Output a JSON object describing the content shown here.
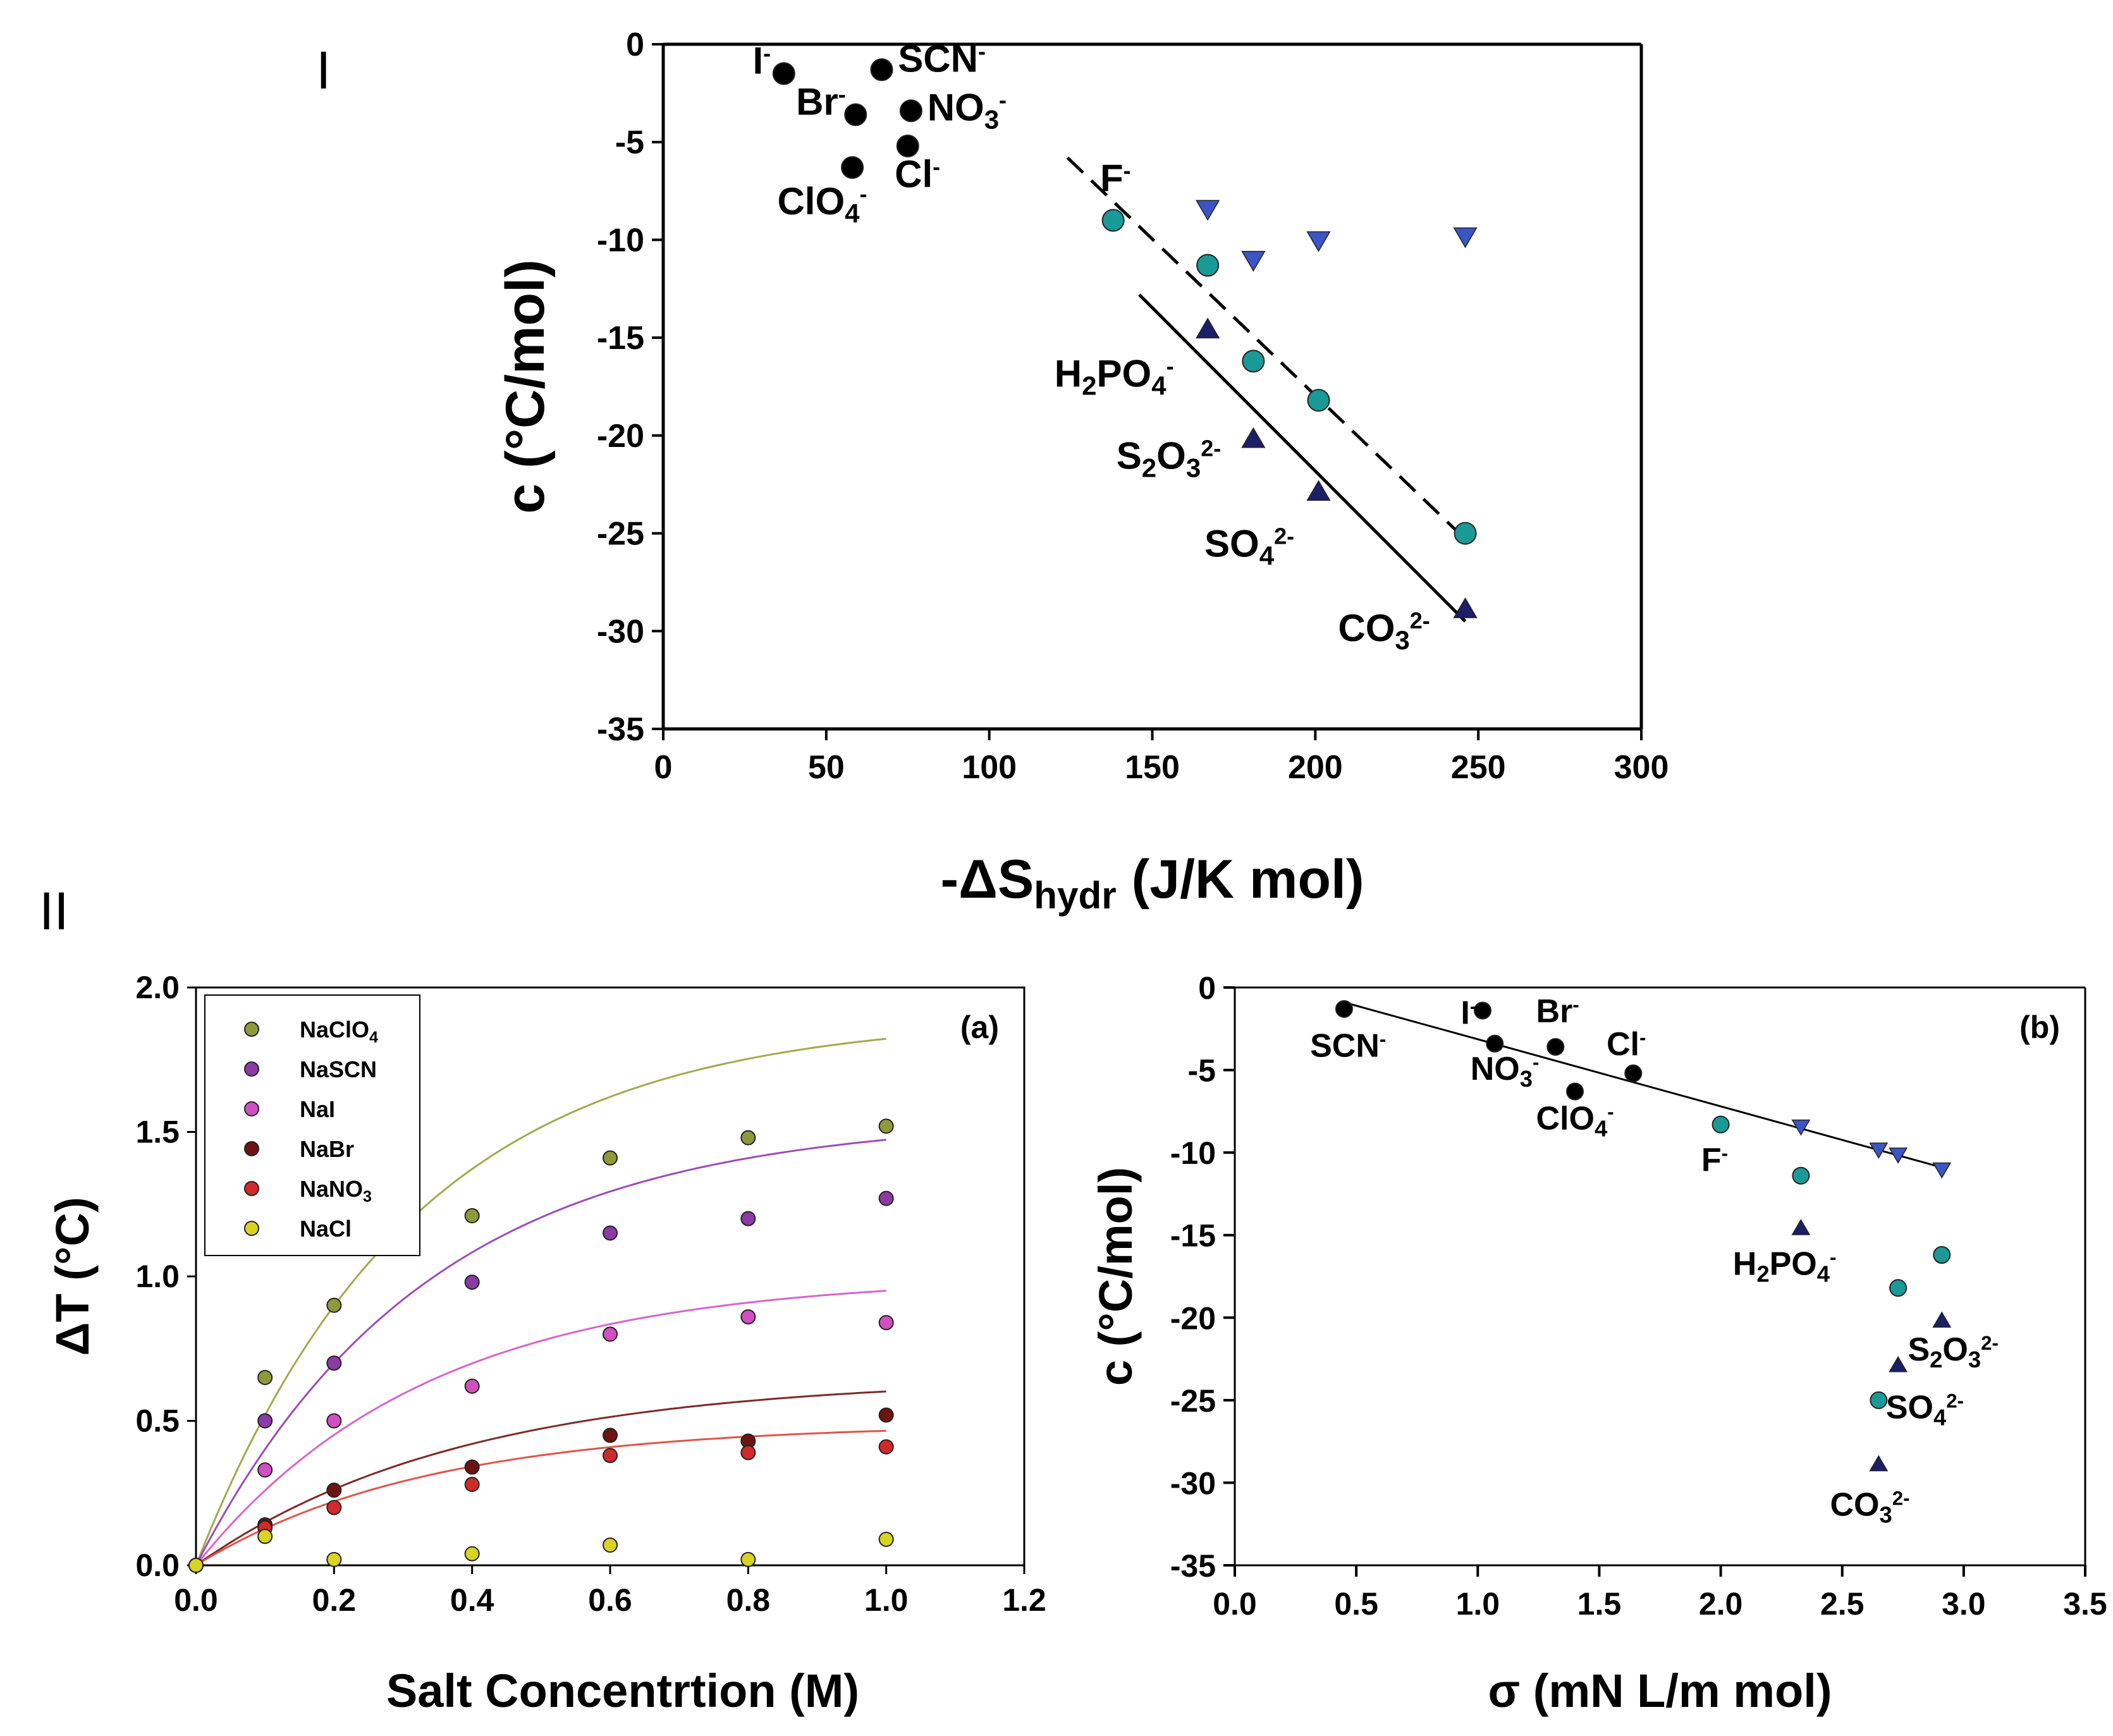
{
  "figure": {
    "panel_I": "I",
    "panel_II": "II",
    "label_a": "(a)",
    "label_b": "(b)"
  },
  "chart_data": [
    {
      "id": "top",
      "type": "scatter",
      "title": "",
      "xlabel": "-ΔS",
      "xlabel_sub": "hydr",
      "xlabel_tail": " (J/K mol)",
      "ylabel": "c (°C/mol)",
      "xlim": [
        0,
        300
      ],
      "ylim": [
        -35,
        0
      ],
      "xticks": [
        0,
        50,
        100,
        150,
        200,
        250,
        300
      ],
      "yticks": [
        0,
        -5,
        -10,
        -15,
        -20,
        -25,
        -30,
        -35
      ],
      "colors": {
        "black": "#000000",
        "teal": "#1a9a97",
        "blue": "#3a55c4",
        "navy": "#1c1e66"
      },
      "series": [
        {
          "name": "monovalent",
          "marker": "circle",
          "color": "black",
          "x": [
            37,
            67,
            59,
            76,
            75,
            58
          ],
          "y": [
            -1.5,
            -1.3,
            -3.6,
            -3.4,
            -5.2,
            -6.3
          ]
        },
        {
          "name": "teal",
          "marker": "circle",
          "color": "teal",
          "x": [
            138,
            167,
            181,
            201,
            246
          ],
          "y": [
            -9,
            -11.3,
            -16.2,
            -18.2,
            -25
          ]
        },
        {
          "name": "blue-down",
          "marker": "tri-down",
          "color": "blue",
          "x": [
            167,
            181,
            201,
            246
          ],
          "y": [
            -8.4,
            -11,
            -10,
            -9.8
          ]
        },
        {
          "name": "navy-up",
          "marker": "tri-up",
          "color": "navy",
          "x": [
            167,
            181,
            201,
            246
          ],
          "y": [
            -14.6,
            -20.2,
            -22.9,
            -28.9
          ]
        }
      ],
      "lines": [
        {
          "style": "dashed",
          "x": [
            124,
            246
          ],
          "y": [
            -5.8,
            -25.3
          ]
        },
        {
          "style": "solid",
          "x": [
            146,
            246
          ],
          "y": [
            -12.8,
            -29.5
          ]
        }
      ],
      "labels": [
        {
          "base": "I",
          "sup": "-",
          "x": 33,
          "y": -1.5,
          "anchor": "end"
        },
        {
          "base": "SCN",
          "sup": "-",
          "x": 72,
          "y": -1.4,
          "anchor": "start"
        },
        {
          "base": "Br",
          "sup": "-",
          "x": 56,
          "y": -3.6,
          "anchor": "end"
        },
        {
          "base": "NO",
          "sub": "3",
          "sup": "-",
          "x": 81,
          "y": -3.9,
          "anchor": "start"
        },
        {
          "base": "Cl",
          "sup": "-",
          "x": 71,
          "y": -7.3,
          "anchor": "start"
        },
        {
          "base": "ClO",
          "sub": "4",
          "sup": "-",
          "x": 35,
          "y": -8.7,
          "anchor": "start"
        },
        {
          "base": "F",
          "sup": "-",
          "x": 134,
          "y": -7.5,
          "anchor": "start"
        },
        {
          "base": "H",
          "sub": "2",
          "base2": "PO",
          "sub2": "4",
          "sup": "-",
          "x": 120,
          "y": -17.5,
          "anchor": "start"
        },
        {
          "base": "S",
          "sub": "2",
          "base2": "O",
          "sub2": "3",
          "sup": "2-",
          "x": 139,
          "y": -21.7,
          "anchor": "start"
        },
        {
          "base": "SO",
          "sub": "4",
          "sup": "2-",
          "x": 166,
          "y": -26.2,
          "anchor": "start"
        },
        {
          "base": "CO",
          "sub": "3",
          "sup": "2-",
          "x": 207,
          "y": -30.5,
          "anchor": "start"
        }
      ]
    },
    {
      "id": "a",
      "type": "line",
      "title": "(a)",
      "xlabel": "Salt Concentrtion (M)",
      "ylabel": "ΔT (°C)",
      "xlim": [
        0,
        1.2
      ],
      "ylim": [
        0,
        2.0
      ],
      "xticks": [
        0.0,
        0.2,
        0.4,
        0.6,
        0.8,
        1.0,
        1.2
      ],
      "yticks": [
        0.0,
        0.5,
        1.0,
        1.5,
        2.0
      ],
      "x": [
        0,
        0.1,
        0.2,
        0.4,
        0.6,
        0.8,
        1.0
      ],
      "series": [
        {
          "name": "NaClO",
          "sub": "4",
          "color": "#8e9a3a",
          "line": "#a3aa4e",
          "values": [
            0,
            0.65,
            0.9,
            1.21,
            1.41,
            1.48,
            1.52
          ],
          "fit": [
            1.9,
            3.2
          ]
        },
        {
          "name": "NaSCN",
          "sub": "",
          "color": "#8b3aa6",
          "line": "#9d4db8",
          "values": [
            0,
            0.5,
            0.7,
            0.98,
            1.15,
            1.2,
            1.27
          ],
          "fit": [
            1.55,
            3.0
          ]
        },
        {
          "name": "NaI",
          "sub": "",
          "color": "#d14fc0",
          "line": "#d865c9",
          "values": [
            0,
            0.33,
            0.5,
            0.62,
            0.8,
            0.86,
            0.84
          ],
          "fit": [
            1.0,
            3.0
          ]
        },
        {
          "name": "NaBr",
          "sub": "",
          "color": "#6e1212",
          "line": "#7d2a2a",
          "values": [
            0,
            0.14,
            0.26,
            0.34,
            0.45,
            0.43,
            0.52
          ],
          "fit": [
            0.65,
            2.6
          ]
        },
        {
          "name": "NaNO",
          "sub": "3",
          "color": "#d22a2a",
          "line": "#e0554a",
          "values": [
            0,
            0.13,
            0.2,
            0.28,
            0.38,
            0.39,
            0.41
          ],
          "fit": [
            0.49,
            3.0
          ]
        },
        {
          "name": "NaCl",
          "sub": "",
          "color": "#d9d322",
          "line": "#d9d322",
          "values": [
            0,
            0.1,
            0.02,
            0.04,
            0.07,
            0.02,
            0.09
          ],
          "fit": null
        }
      ]
    },
    {
      "id": "b",
      "type": "scatter",
      "title": "(b)",
      "xlabel": "σ (mN L/m mol)",
      "ylabel": "c (°C/mol)",
      "xlim": [
        0,
        3.5
      ],
      "ylim": [
        -35,
        0
      ],
      "xticks": [
        "0.0",
        "0.5",
        "1.0",
        "1.5",
        "2.0",
        "2.5",
        "3.0",
        "3.5"
      ],
      "yticks": [
        0,
        -5,
        -10,
        -15,
        -20,
        -25,
        -30,
        -35
      ],
      "colors": {
        "black": "#000000",
        "teal": "#1a9a97",
        "blue": "#3a55c4",
        "navy": "#1c1e66"
      },
      "series": [
        {
          "name": "monovalent",
          "marker": "circle",
          "color": "black",
          "x": [
            0.45,
            1.02,
            1.07,
            1.32,
            1.4,
            1.64
          ],
          "y": [
            -1.3,
            -1.4,
            -3.4,
            -3.6,
            -6.3,
            -5.2
          ]
        },
        {
          "name": "teal",
          "marker": "circle",
          "color": "teal",
          "x": [
            2.0,
            2.33,
            2.65,
            2.73,
            2.91
          ],
          "y": [
            -8.3,
            -11.4,
            -25.0,
            -18.2,
            -16.2
          ]
        },
        {
          "name": "blue-down",
          "marker": "tri-down",
          "color": "blue",
          "x": [
            2.33,
            2.65,
            2.73,
            2.91
          ],
          "y": [
            -8.4,
            -9.8,
            -10.1,
            -11.0
          ]
        },
        {
          "name": "navy-up",
          "marker": "tri-up",
          "color": "navy",
          "x": [
            2.33,
            2.65,
            2.73,
            2.91
          ],
          "y": [
            -14.6,
            -28.9,
            -22.9,
            -20.2
          ]
        }
      ],
      "lines": [
        {
          "style": "solid",
          "x": [
            0.45,
            2.91
          ],
          "y": [
            -0.9,
            -10.9
          ]
        }
      ],
      "labels": [
        {
          "base": "SCN",
          "sup": "-",
          "x": 0.31,
          "y": -4.2,
          "anchor": "start"
        },
        {
          "base": "I",
          "sup": "-",
          "x": 0.93,
          "y": -2.2,
          "anchor": "start"
        },
        {
          "base": "Br",
          "sup": "-",
          "x": 1.24,
          "y": -2.1,
          "anchor": "start"
        },
        {
          "base": "NO",
          "sub": "3",
          "sup": "-",
          "x": 0.97,
          "y": -5.6,
          "anchor": "start"
        },
        {
          "base": "Cl",
          "sup": "-",
          "x": 1.53,
          "y": -4.1,
          "anchor": "start"
        },
        {
          "base": "ClO",
          "sub": "4",
          "sup": "-",
          "x": 1.24,
          "y": -8.6,
          "anchor": "start"
        },
        {
          "base": "F",
          "sup": "-",
          "x": 1.92,
          "y": -11.1,
          "anchor": "start"
        },
        {
          "base": "H",
          "sub": "2",
          "base2": "PO",
          "sub2": "4",
          "sup": "-",
          "x": 2.05,
          "y": -17.4,
          "anchor": "start"
        },
        {
          "base": "S",
          "sub": "2",
          "base2": "O",
          "sub2": "3",
          "sup": "2-",
          "x": 2.77,
          "y": -22.6,
          "anchor": "start"
        },
        {
          "base": "SO",
          "sub": "4",
          "sup": "2-",
          "x": 2.68,
          "y": -26.1,
          "anchor": "start"
        },
        {
          "base": "CO",
          "sub": "3",
          "sup": "2-",
          "x": 2.45,
          "y": -32.0,
          "anchor": "start"
        }
      ]
    }
  ]
}
